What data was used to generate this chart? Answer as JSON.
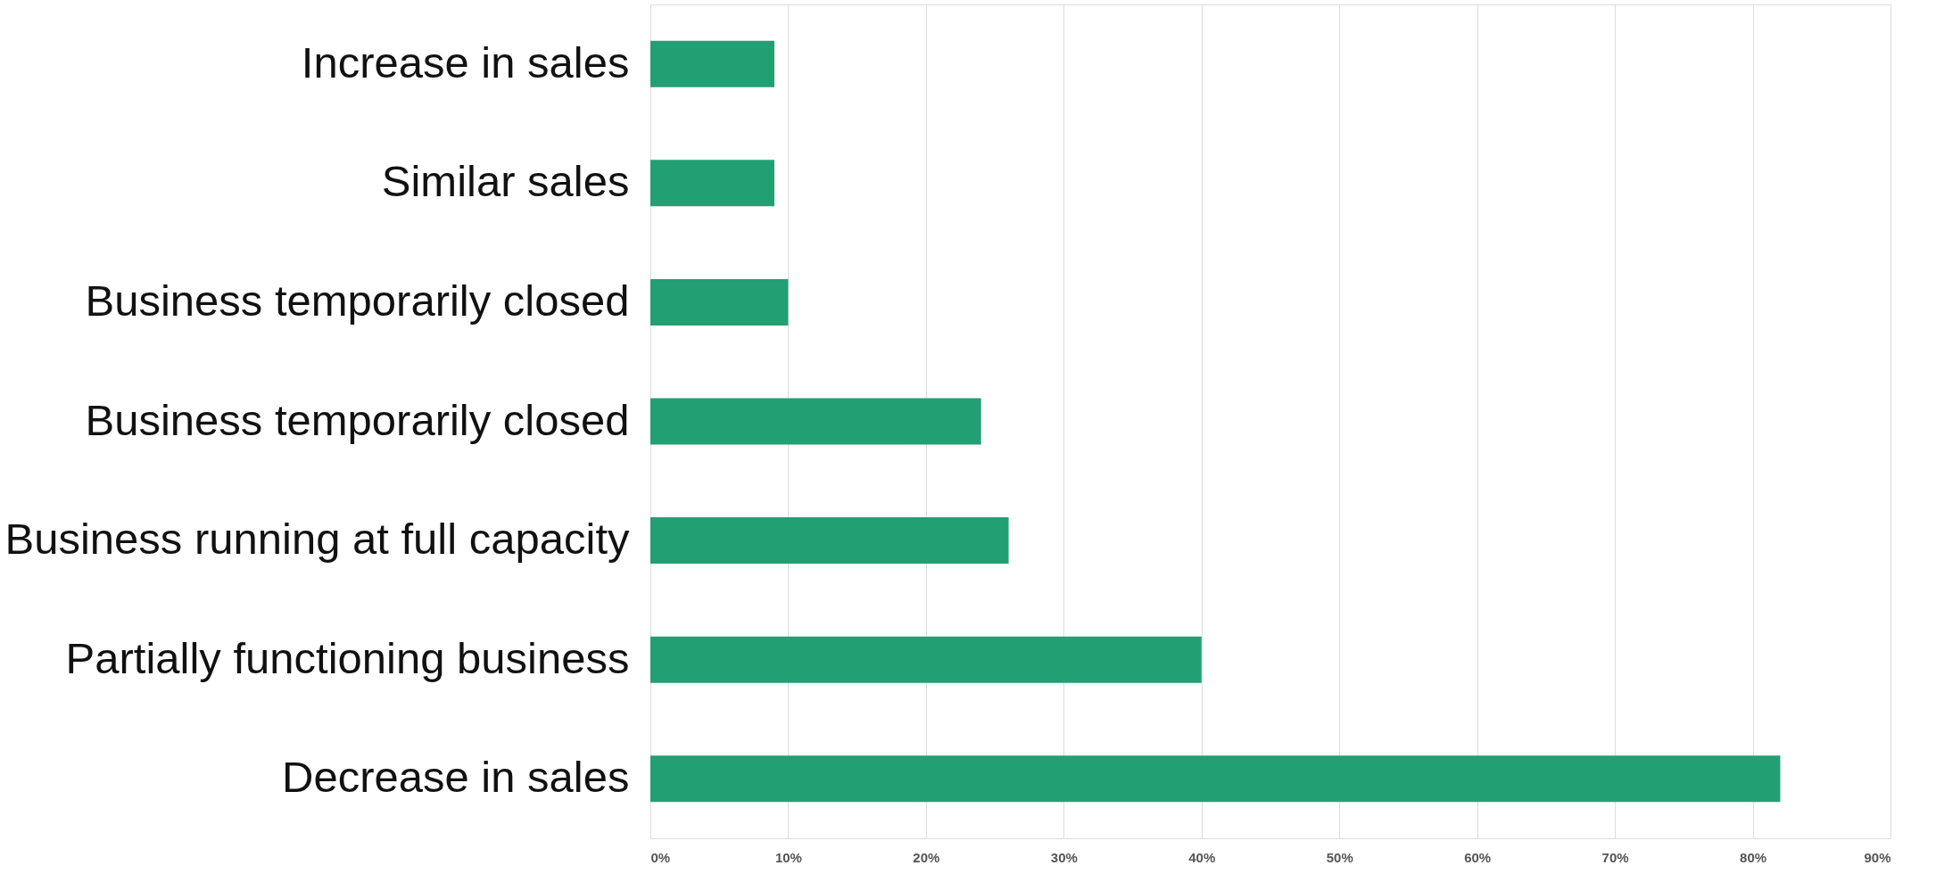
{
  "chart_data": {
    "type": "bar",
    "orientation": "horizontal",
    "categories": [
      "Increase in sales",
      "Similar sales",
      "Business temporarily closed",
      "Business temporarily closed",
      "Business running at full capacity",
      "Partially functioning business",
      "Decrease in sales"
    ],
    "values": [
      9,
      9,
      10,
      24,
      26,
      40,
      82
    ],
    "color": "#239f74",
    "xlim": [
      0,
      90
    ],
    "xticks": [
      {
        "value": 0,
        "label": "0%"
      },
      {
        "value": 10,
        "label": "10%"
      },
      {
        "value": 20,
        "label": "20%"
      },
      {
        "value": 30,
        "label": "30%"
      },
      {
        "value": 40,
        "label": "40%"
      },
      {
        "value": 50,
        "label": "50%"
      },
      {
        "value": 60,
        "label": "60%"
      },
      {
        "value": 70,
        "label": "70%"
      },
      {
        "value": 80,
        "label": "80%"
      },
      {
        "value": 90,
        "label": "90%"
      }
    ],
    "grid": "x"
  }
}
